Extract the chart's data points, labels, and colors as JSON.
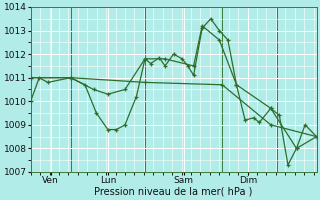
{
  "title": "Pression niveau de la mer( hPa )",
  "background_color": "#b2ece8",
  "grid_color": "#ffffff",
  "line_color": "#2d6e2d",
  "ylim": [
    1007,
    1014
  ],
  "yticks": [
    1007,
    1008,
    1009,
    1010,
    1011,
    1012,
    1013,
    1014
  ],
  "xlim": [
    0,
    1.0
  ],
  "vline_positions": [
    0.14,
    0.4,
    0.67,
    0.86
  ],
  "day_positions": [
    0.07,
    0.27,
    0.535,
    0.76
  ],
  "day_labels": [
    "Ven",
    "Lun",
    "Sam",
    "Dim"
  ],
  "series": [
    [
      0.0,
      1010.0,
      0.03,
      1011.0,
      0.06,
      1010.8,
      0.14,
      1011.0,
      0.19,
      1010.7,
      0.23,
      1009.5,
      0.27,
      1008.8,
      0.3,
      1008.8,
      0.33,
      1009.0,
      0.37,
      1010.2,
      0.4,
      1011.8,
      0.42,
      1011.6,
      0.45,
      1011.85,
      0.47,
      1011.5,
      0.5,
      1012.0,
      0.53,
      1011.8,
      0.55,
      1011.5,
      0.57,
      1011.1,
      0.6,
      1013.1,
      0.63,
      1013.5,
      0.66,
      1013.0,
      0.69,
      1012.6,
      0.72,
      1010.7,
      0.75,
      1009.2,
      0.78,
      1009.3,
      0.8,
      1009.1,
      0.84,
      1009.7,
      0.87,
      1009.4,
      0.9,
      1007.3,
      0.93,
      1008.0,
      0.96,
      1009.0,
      1.0,
      1008.5
    ],
    [
      0.0,
      1011.0,
      0.14,
      1011.0,
      0.22,
      1010.5,
      0.27,
      1010.3,
      0.33,
      1010.5,
      0.4,
      1011.8,
      0.47,
      1011.8,
      0.57,
      1011.5,
      0.6,
      1013.2,
      0.66,
      1012.6,
      0.72,
      1010.7,
      0.84,
      1009.7,
      0.93,
      1008.0,
      1.0,
      1008.5
    ],
    [
      0.0,
      1011.0,
      0.14,
      1011.0,
      0.4,
      1010.8,
      0.67,
      1010.7,
      0.84,
      1009.0,
      1.0,
      1008.5
    ]
  ]
}
